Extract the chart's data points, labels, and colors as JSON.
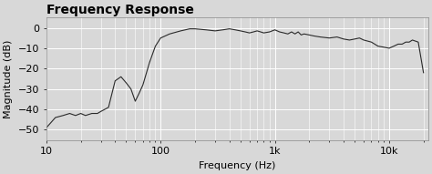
{
  "title": "Frequency Response",
  "xlabel": "Frequency (Hz)",
  "ylabel": "Magnitude (dB)",
  "xlim": [
    10,
    22000
  ],
  "ylim": [
    -55,
    5
  ],
  "yticks": [
    0,
    -10,
    -20,
    -30,
    -40,
    -50
  ],
  "bg_color": "#d8d8d8",
  "line_color": "#2a2a2a",
  "grid_major_color": "#ffffff",
  "grid_minor_color": "#e8e8e8",
  "title_fontsize": 10,
  "label_fontsize": 8,
  "tick_fontsize": 8,
  "curve": {
    "freqs": [
      10,
      12,
      14,
      16,
      18,
      20,
      22,
      25,
      28,
      30,
      35,
      40,
      45,
      50,
      55,
      60,
      65,
      70,
      80,
      90,
      100,
      120,
      150,
      180,
      200,
      250,
      300,
      350,
      400,
      450,
      500,
      550,
      600,
      650,
      700,
      750,
      800,
      900,
      1000,
      1100,
      1200,
      1300,
      1400,
      1500,
      1600,
      1700,
      1800,
      2000,
      2200,
      2500,
      3000,
      3500,
      4000,
      4500,
      5000,
      5500,
      6000,
      7000,
      8000,
      9000,
      10000,
      11000,
      12000,
      13000,
      14000,
      15000,
      16000,
      18000,
      20000
    ],
    "magnitudes": [
      -49,
      -44,
      -43,
      -42,
      -43,
      -42,
      -43,
      -42,
      -42,
      -41,
      -39,
      -26,
      -24,
      -27,
      -30,
      -36,
      -32,
      -28,
      -17,
      -9,
      -5,
      -3,
      -1.5,
      -0.5,
      -0.5,
      -1,
      -1.5,
      -1,
      -0.5,
      -1,
      -1.5,
      -2,
      -2.5,
      -2,
      -1.5,
      -2,
      -2.5,
      -2,
      -1,
      -2,
      -2.5,
      -3,
      -2,
      -3,
      -2,
      -3.5,
      -3,
      -3.5,
      -4,
      -4.5,
      -5,
      -4.5,
      -5.5,
      -6,
      -5.5,
      -5,
      -6,
      -7,
      -9,
      -9.5,
      -10,
      -9,
      -8,
      -8,
      -7,
      -7,
      -6,
      -7,
      -22
    ]
  }
}
